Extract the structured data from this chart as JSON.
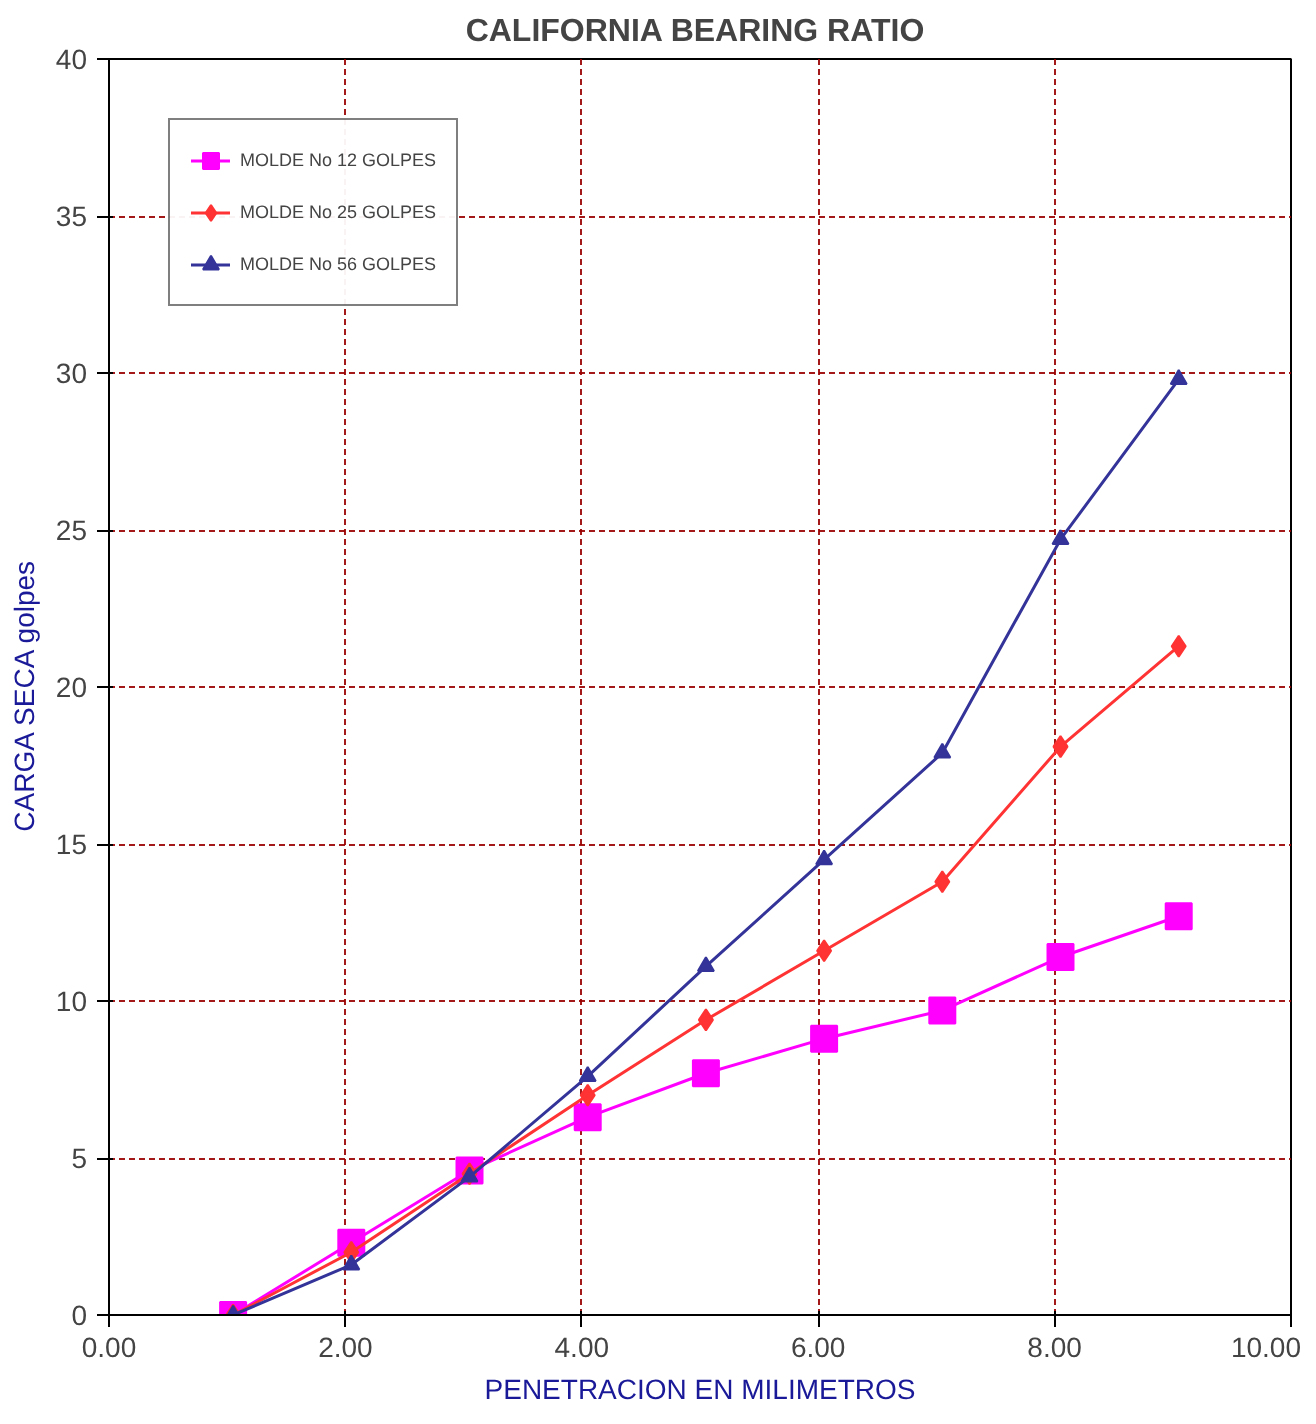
{
  "chart_data": {
    "type": "line",
    "title": "CALIFORNIA BEARING  RATIO",
    "xlabel": "PENETRACION EN MILIMETROS",
    "ylabel": "CARGA SECA   golpes",
    "x": [
      1.05,
      2.05,
      3.05,
      4.05,
      5.05,
      6.05,
      7.05,
      8.05,
      9.05
    ],
    "series": [
      {
        "name": "MOLDE No 12 GOLPES",
        "color": "#ff00ff",
        "marker": "square",
        "values": [
          0,
          2.3,
          4.6,
          6.3,
          7.7,
          8.8,
          9.7,
          11.4,
          12.7
        ]
      },
      {
        "name": "MOLDE No 25 GOLPES",
        "color": "#ff3333",
        "marker": "diamond",
        "values": [
          0,
          2.0,
          4.5,
          7.0,
          9.4,
          11.6,
          13.8,
          18.1,
          21.3
        ]
      },
      {
        "name": "MOLDE No 56 GOLPES",
        "color": "#333399",
        "marker": "triangle",
        "values": [
          0,
          1.6,
          4.4,
          7.6,
          11.1,
          14.5,
          17.9,
          24.7,
          29.8
        ]
      }
    ],
    "xlim": [
      0,
      10
    ],
    "ylim": [
      0,
      40
    ],
    "xticks": [
      {
        "value": 0,
        "label": "0.00"
      },
      {
        "value": 2,
        "label": "2.00"
      },
      {
        "value": 4,
        "label": "4.00"
      },
      {
        "value": 6,
        "label": "6.00"
      },
      {
        "value": 8,
        "label": "8.00"
      },
      {
        "value": 10,
        "label": "10.00"
      }
    ],
    "yticks": [
      0,
      5,
      10,
      15,
      20,
      25,
      30,
      35,
      40
    ],
    "grid": true,
    "legend": "top left",
    "line_style": "solid"
  }
}
